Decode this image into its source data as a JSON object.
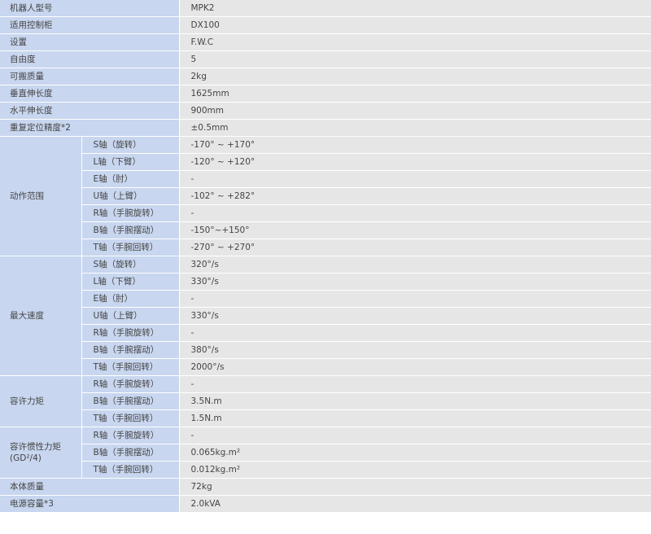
{
  "spec_table": {
    "rows": [
      {
        "label": "机器人型号",
        "value": "MPK2"
      },
      {
        "label": "适用控制柜",
        "value": "DX100"
      },
      {
        "label": "设置",
        "value": "F.W.C"
      },
      {
        "label": "自由度",
        "value": "5"
      },
      {
        "label": "可搬质量",
        "value": "2kg"
      },
      {
        "label": "垂直伸长度",
        "value": "1625mm"
      },
      {
        "label": "水平伸长度",
        "value": "900mm"
      },
      {
        "label": "重复定位精度*2",
        "value": "±0.5mm"
      },
      {
        "label": "动作范围",
        "items": [
          {
            "axis": "S轴（旋转）",
            "value": "-170° ~ +170°"
          },
          {
            "axis": "L轴（下臂）",
            "value": "-120° ~ +120°"
          },
          {
            "axis": "E轴（肘）",
            "value": "-"
          },
          {
            "axis": "U轴（上臂）",
            "value": "-102° ~ +282°"
          },
          {
            "axis": "R轴（手腕旋转）",
            "value": "-"
          },
          {
            "axis": "B轴（手腕摆动）",
            "value": "-150°~+150°"
          },
          {
            "axis": "T轴（手腕回转）",
            "value": "-270° ~ +270°"
          }
        ]
      },
      {
        "label": "最大速度",
        "items": [
          {
            "axis": "S轴（旋转）",
            "value": "320°/s"
          },
          {
            "axis": "L轴（下臂）",
            "value": "330°/s"
          },
          {
            "axis": "E轴（肘）",
            "value": "-"
          },
          {
            "axis": "U轴（上臂）",
            "value": "330°/s"
          },
          {
            "axis": "R轴（手腕旋转）",
            "value": "-"
          },
          {
            "axis": "B轴（手腕摆动）",
            "value": "380°/s"
          },
          {
            "axis": "T轴（手腕回转）",
            "value": "2000°/s"
          }
        ]
      },
      {
        "label": "容许力矩",
        "items": [
          {
            "axis": "R轴（手腕旋转）",
            "value": "-"
          },
          {
            "axis": "B轴（手腕摆动）",
            "value": "3.5N.m"
          },
          {
            "axis": "T轴（手腕回转）",
            "value": "1.5N.m"
          }
        ]
      },
      {
        "label": "容许惯性力矩(GD²/4)",
        "items": [
          {
            "axis": "R轴（手腕旋转）",
            "value": "-"
          },
          {
            "axis": "B轴（手腕摆动）",
            "value": "0.065kg.m²"
          },
          {
            "axis": "T轴（手腕回转）",
            "value": "0.012kg.m²"
          }
        ]
      },
      {
        "label": "本体质量",
        "value": "72kg"
      },
      {
        "label": "电源容量*3",
        "value": "2.0kVA"
      }
    ]
  }
}
